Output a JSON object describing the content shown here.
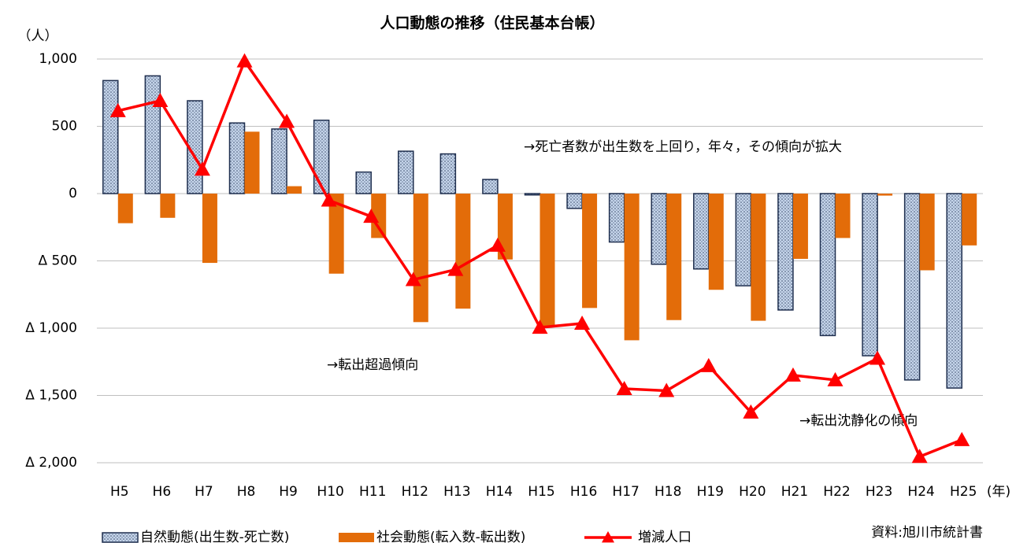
{
  "chart_data": {
    "type": "bar-line",
    "title": "人口動態の推移（住民基本台帳）",
    "y_label": "（人）",
    "x_label": "(年)",
    "source": "資料:旭川市統計書",
    "annotations": [
      "→死亡者数が出生数を上回り，年々，その傾向が拡大",
      "→転出超過傾向",
      "→転出沈静化の傾向"
    ],
    "categories": [
      "H5",
      "H6",
      "H7",
      "H8",
      "H9",
      "H10",
      "H11",
      "H12",
      "H13",
      "H14",
      "H15",
      "H16",
      "H17",
      "H18",
      "H19",
      "H20",
      "H21",
      "H22",
      "H23",
      "H24",
      "H25"
    ],
    "series": [
      {
        "name": "自然動態(出生数-死亡数)",
        "type": "bar",
        "color": "#c5d5ea",
        "values": [
          840,
          875,
          690,
          525,
          480,
          545,
          160,
          315,
          295,
          105,
          -10,
          -110,
          -360,
          -525,
          -560,
          -685,
          -865,
          -1055,
          -1205,
          -1385,
          -1445
        ]
      },
      {
        "name": "社会動態(転入数-転出数)",
        "type": "bar",
        "color": "#e36c09",
        "values": [
          -220,
          -180,
          -515,
          460,
          55,
          -595,
          -330,
          -955,
          -855,
          -490,
          -985,
          -850,
          -1090,
          -940,
          -715,
          -945,
          -485,
          -330,
          -15,
          -570,
          -385
        ]
      },
      {
        "name": "増減人口",
        "type": "line",
        "color": "#ff0000",
        "values": [
          615,
          690,
          180,
          985,
          535,
          -50,
          -170,
          -640,
          -565,
          -385,
          -995,
          -965,
          -1450,
          -1465,
          -1280,
          -1625,
          -1350,
          -1385,
          -1225,
          -1955,
          -1830
        ]
      }
    ],
    "ylim": [
      -2000,
      1000
    ],
    "yticks": [
      {
        "value": 1000,
        "label": "1,000"
      },
      500,
      0,
      {
        "value": -500,
        "label": "Δ 500"
      },
      {
        "value": -1000,
        "label": "Δ 1,000"
      },
      {
        "value": -1500,
        "label": "Δ 1,500"
      },
      {
        "value": -2000,
        "label": "Δ 2,000"
      }
    ],
    "grid": true
  }
}
